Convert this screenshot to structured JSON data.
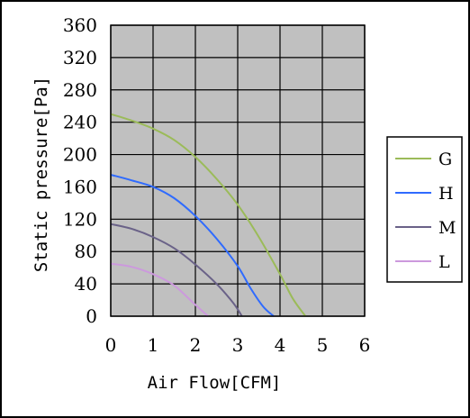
{
  "chart_data": {
    "type": "line",
    "xlabel": "Air Flow[CFM]",
    "ylabel": "Static pressure[Pa]",
    "xlim": [
      0,
      6
    ],
    "ylim": [
      0,
      360
    ],
    "xticks": [
      "0",
      "1",
      "2",
      "3",
      "4",
      "5",
      "6"
    ],
    "yticks": [
      "0",
      "40",
      "80",
      "120",
      "160",
      "200",
      "240",
      "280",
      "320",
      "360"
    ],
    "grid": true,
    "plot_background": "#c0c0c0",
    "legend_position": "right",
    "series": [
      {
        "name": "G",
        "color": "#9bbb59",
        "x": [
          0,
          0.5,
          1.0,
          1.5,
          2.0,
          2.5,
          3.0,
          3.5,
          4.0,
          4.3,
          4.6
        ],
        "y": [
          250,
          242,
          232,
          218,
          197,
          170,
          138,
          98,
          52,
          22,
          0
        ]
      },
      {
        "name": "H",
        "color": "#2f6bff",
        "x": [
          0,
          0.5,
          1.0,
          1.5,
          2.0,
          2.5,
          3.0,
          3.3,
          3.6,
          3.85
        ],
        "y": [
          175,
          168,
          160,
          146,
          124,
          96,
          62,
          35,
          12,
          0
        ]
      },
      {
        "name": "M",
        "color": "#6a6288",
        "x": [
          0,
          0.5,
          1.0,
          1.5,
          2.0,
          2.5,
          2.9,
          3.1
        ],
        "y": [
          114,
          108,
          98,
          84,
          64,
          40,
          16,
          0
        ]
      },
      {
        "name": "L",
        "color": "#cc99dd",
        "x": [
          0,
          0.5,
          1.0,
          1.5,
          2.0,
          2.3
        ],
        "y": [
          65,
          61,
          52,
          38,
          14,
          0
        ]
      }
    ]
  }
}
